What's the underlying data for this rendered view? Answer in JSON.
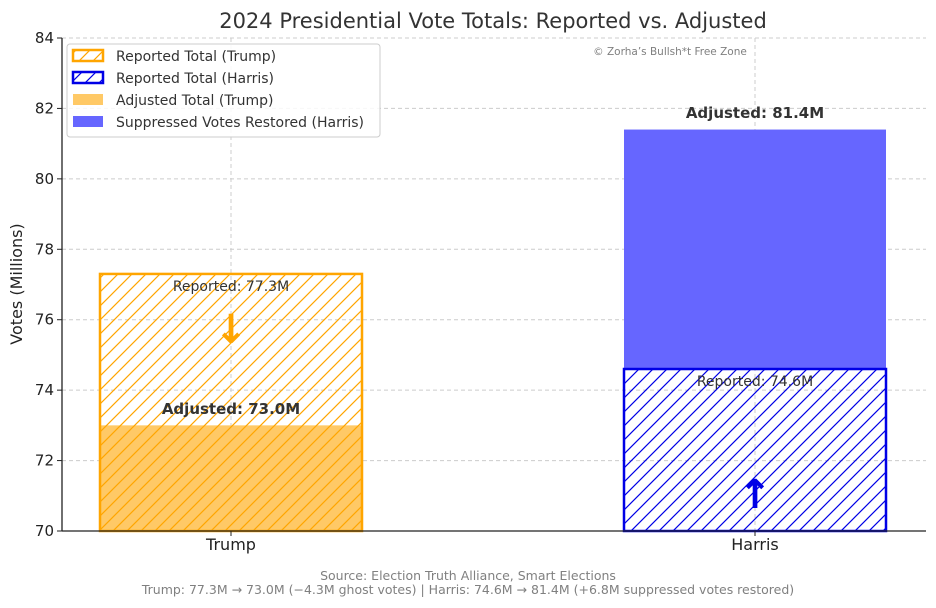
{
  "chart_data": {
    "type": "bar",
    "title": "2024 Presidential Vote Totals: Reported vs. Adjusted",
    "watermark": "© Zorha’s Bullsh*t Free Zone",
    "xlabel": "",
    "ylabel": "Votes (Millions)",
    "ylim": [
      70,
      84
    ],
    "yticks": [
      70,
      72,
      74,
      76,
      78,
      80,
      82,
      84
    ],
    "categories": [
      "Trump",
      "Harris"
    ],
    "grid": true,
    "legend_position": "top-left",
    "series": [
      {
        "name": "Reported Total (Trump)",
        "category": "Trump",
        "value": 77.3,
        "style": "hatched-outline",
        "color": "#ffa500"
      },
      {
        "name": "Reported Total (Harris)",
        "category": "Harris",
        "value": 74.6,
        "style": "hatched-outline",
        "color": "#0000e6"
      },
      {
        "name": "Adjusted Total (Trump)",
        "category": "Trump",
        "value": 73.0,
        "style": "filled",
        "color": "#ffc966"
      },
      {
        "name": "Suppressed Votes Restored (Harris)",
        "category": "Harris",
        "value": 81.4,
        "base": 74.6,
        "style": "filled",
        "color": "#6666ff"
      }
    ],
    "annotations": {
      "trump_reported": "Reported: 77.3M",
      "trump_adjusted": "Adjusted: 73.0M",
      "harris_reported": "Reported: 74.6M",
      "harris_adjusted": "Adjusted: 81.4M",
      "trump_arrow": "↓",
      "harris_arrow": "↑"
    },
    "source_line1": "Source: Election Truth Alliance, Smart Elections",
    "source_line2": "Trump: 77.3M → 73.0M (−4.3M ghost votes) | Harris: 74.6M → 81.4M (+6.8M suppressed votes restored)"
  }
}
